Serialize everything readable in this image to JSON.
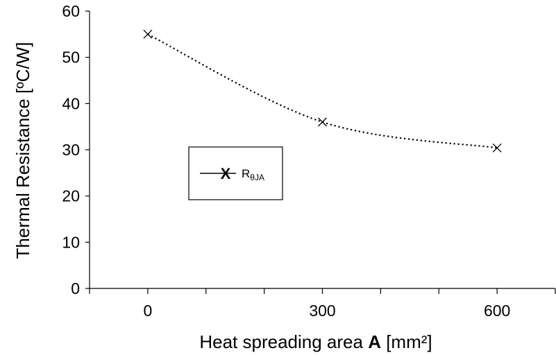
{
  "chart_data": {
    "type": "line",
    "title": "",
    "ylabel": "Thermal Resistance [ºC/W]",
    "xlabel": {
      "prefix": "Heat spreading area ",
      "bold": "A",
      "suffix": " [mm²]"
    },
    "xlim": [
      -100,
      700
    ],
    "ylim": [
      0,
      60
    ],
    "x_ticks": [
      0,
      300,
      600
    ],
    "x_minor_ticks": [
      -100,
      0,
      100,
      200,
      300,
      400,
      500,
      600,
      700
    ],
    "y_ticks": [
      0,
      10,
      20,
      30,
      40,
      50,
      60
    ],
    "grid": false,
    "legend_position": "center-left",
    "series": [
      {
        "name": "RθJA",
        "name_base": "R",
        "name_sub": "θJA",
        "marker": "x",
        "line_style": "dotted",
        "x": [
          0,
          300,
          600
        ],
        "y": [
          55,
          36,
          30.4
        ]
      }
    ]
  }
}
